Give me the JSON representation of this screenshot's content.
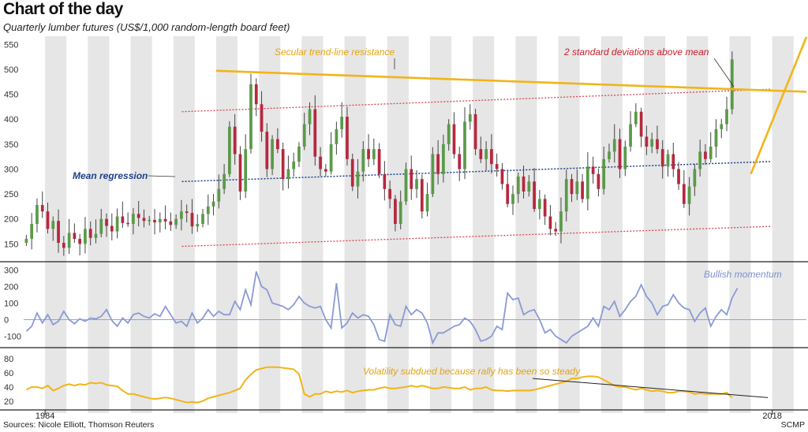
{
  "header": {
    "title": "Chart of the day",
    "subtitle": "Quarterly lumber futures (US$/1,000 random-length board feet)"
  },
  "footer": {
    "source": "Sources: Nicole Elliott, Thomson Reuters",
    "credit": "SCMP"
  },
  "colors": {
    "up": "#5a9a48",
    "down": "#b5283e",
    "band_shade": "#e6e6e6",
    "trendline": "#f2b418",
    "mean": "#1f3e8a",
    "stdev": "#d9434f",
    "momentum": "#8a9ad6",
    "volatility": "#f2b418"
  },
  "chart_data": [
    {
      "type": "candlestick",
      "name": "price",
      "ylim": [
        130,
        560
      ],
      "yticks": [
        150,
        200,
        250,
        300,
        350,
        400,
        450,
        500,
        550
      ],
      "x_start": 1983.0,
      "x_end": 2018.25,
      "xticks": [
        {
          "value": 1984,
          "label": "1984"
        },
        {
          "value": 2018,
          "label": "2018"
        }
      ],
      "annotations": [
        {
          "text": "Secular trend-line resistance"
        },
        {
          "text": "2 standard deviations above mean"
        },
        {
          "text": "Mean regression"
        }
      ],
      "lines": {
        "trend_resistance": [
          [
            1992,
            497
          ],
          [
            2019.6,
            455
          ]
        ],
        "breakout": [
          [
            2017.0,
            290
          ],
          [
            2019.6,
            565
          ]
        ],
        "mean": [
          [
            1990.4,
            275
          ],
          [
            2017.9,
            315
          ]
        ],
        "upper_2sd": [
          [
            1990.4,
            415
          ],
          [
            2017.9,
            460
          ]
        ],
        "lower_2sd": [
          [
            1990.4,
            145
          ],
          [
            2017.9,
            185
          ]
        ]
      },
      "candles_source": "quarterly closes (start 1983.0, 0.25y step)",
      "closes": [
        160,
        190,
        228,
        215,
        180,
        196,
        152,
        142,
        172,
        160,
        150,
        180,
        162,
        170,
        200,
        186,
        175,
        205,
        192,
        190,
        210,
        202,
        196,
        198,
        193,
        200,
        195,
        188,
        200,
        215,
        212,
        185,
        190,
        210,
        225,
        235,
        260,
        290,
        385,
        330,
        255,
        340,
        470,
        430,
        375,
        300,
        360,
        340,
        280,
        300,
        315,
        345,
        390,
        420,
        325,
        300,
        295,
        350,
        380,
        405,
        320,
        265,
        295,
        340,
        320,
        340,
        290,
        260,
        240,
        190,
        235,
        300,
        260,
        280,
        215,
        250,
        330,
        290,
        350,
        390,
        330,
        300,
        395,
        410,
        340,
        320,
        340,
        310,
        300,
        270,
        230,
        250,
        285,
        255,
        275,
        220,
        240,
        205,
        180,
        175,
        215,
        280,
        250,
        275,
        240,
        305,
        290,
        260,
        320,
        335,
        360,
        300,
        345,
        390,
        415,
        365,
        345,
        360,
        340,
        305,
        330,
        300,
        270,
        230,
        265,
        300,
        335,
        320,
        345,
        380,
        390,
        420,
        520
      ],
      "xlabel": "",
      "ylabel": ""
    },
    {
      "type": "line",
      "name": "Bullish momentum",
      "ylim": [
        -145,
        330
      ],
      "yticks": [
        -100,
        0,
        100,
        200,
        300
      ],
      "x_start": 1983.0,
      "x_step": 0.25,
      "values": [
        -70,
        -40,
        40,
        -20,
        30,
        -30,
        -10,
        50,
        0,
        -25,
        5,
        -10,
        10,
        5,
        20,
        60,
        -5,
        -40,
        10,
        -20,
        30,
        40,
        20,
        10,
        35,
        20,
        80,
        30,
        -20,
        -10,
        -40,
        40,
        -20,
        10,
        60,
        20,
        50,
        30,
        30,
        110,
        60,
        180,
        90,
        290,
        200,
        180,
        100,
        90,
        80,
        60,
        90,
        140,
        100,
        80,
        70,
        80,
        0,
        -50,
        220,
        -50,
        -20,
        40,
        10,
        30,
        20,
        -30,
        -120,
        -130,
        30,
        -30,
        -40,
        80,
        30,
        60,
        40,
        -20,
        -140,
        -80,
        -80,
        -60,
        -40,
        -30,
        10,
        -10,
        -60,
        -130,
        -120,
        -100,
        -40,
        -60,
        160,
        120,
        130,
        30,
        50,
        60,
        0,
        -80,
        -60,
        -100,
        -120,
        -140,
        -100,
        -80,
        -60,
        -40,
        10,
        -40,
        80,
        60,
        110,
        20,
        60,
        110,
        140,
        210,
        140,
        100,
        30,
        80,
        90,
        150,
        100,
        70,
        60,
        -10,
        40,
        70,
        -40,
        20,
        60,
        30,
        130,
        190
      ]
    },
    {
      "type": "line",
      "name": "volatility",
      "annotation": "Volatility subdued because rally has been so steady",
      "ylim": [
        12,
        90
      ],
      "yticks": [
        20,
        40,
        60,
        80
      ],
      "x_start": 1983.0,
      "x_step": 0.25,
      "values": [
        36,
        40,
        40,
        38,
        42,
        35,
        38,
        42,
        44,
        42,
        44,
        43,
        46,
        45,
        46,
        43,
        42,
        41,
        35,
        30,
        30,
        28,
        26,
        24,
        23,
        24,
        25,
        24,
        22,
        20,
        18,
        19,
        18,
        20,
        24,
        26,
        28,
        30,
        32,
        35,
        38,
        50,
        58,
        64,
        66,
        68,
        68,
        68,
        67,
        66,
        65,
        58,
        30,
        26,
        30,
        30,
        34,
        32,
        34,
        33,
        35,
        32,
        34,
        35,
        36,
        36,
        38,
        40,
        38,
        38,
        39,
        40,
        42,
        40,
        42,
        40,
        38,
        38,
        40,
        39,
        38,
        38,
        40,
        36,
        38,
        38,
        40,
        36,
        35,
        35,
        34,
        35,
        35,
        35,
        35,
        36,
        38,
        40,
        42,
        44,
        46,
        48,
        52,
        52,
        54,
        55,
        55,
        54,
        50,
        46,
        42,
        40,
        40,
        38,
        36,
        38,
        36,
        34,
        35,
        34,
        32,
        32,
        34,
        34,
        33,
        30,
        31,
        30,
        30,
        30,
        30,
        32,
        25
      ],
      "trend_line": [
        [
          2006.8,
          52
        ],
        [
          2017.8,
          25
        ]
      ]
    }
  ]
}
